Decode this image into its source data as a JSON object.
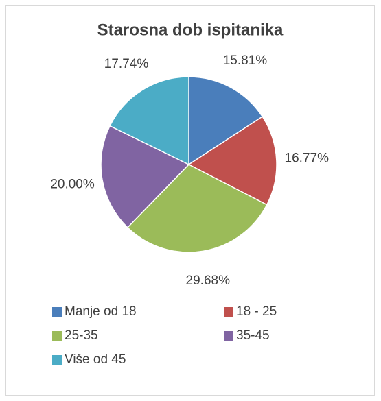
{
  "chart_data": {
    "type": "pie",
    "title": "Starosna dob ispitanika",
    "categories": [
      "Manje od 18",
      "18 - 25",
      "25-35",
      "35-45",
      "Više od 45"
    ],
    "values": [
      15.81,
      16.77,
      29.68,
      20.0,
      17.74
    ],
    "value_labels": [
      "15.81%",
      "16.77%",
      "29.68%",
      "20.00%",
      "17.74%"
    ],
    "colors": [
      "#4a7ebb",
      "#c0504d",
      "#9bbb59",
      "#8064a2",
      "#4bacc6"
    ],
    "legend": "bottom"
  }
}
